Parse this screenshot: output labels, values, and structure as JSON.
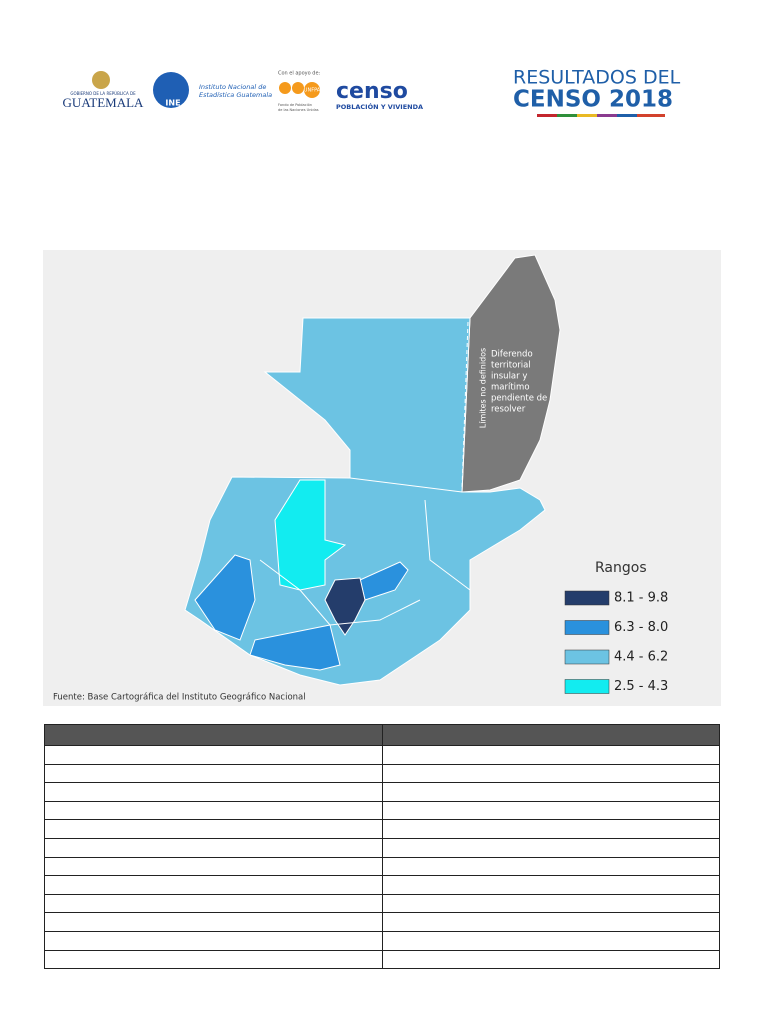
{
  "header": {
    "logos": {
      "guatemala": {
        "line1": "GOBIERNO DE LA REPÚBLICA DE",
        "line2": "GUATEMALA"
      },
      "ine": {
        "abbr": "INE",
        "name_line1": "Instituto Nacional de",
        "name_line2": "Estadística Guatemala"
      },
      "unfpa": {
        "support": "Con el apoyo de:",
        "abbr": "UNFPA",
        "name_line1": "Fondo de Población",
        "name_line2": "de las Naciones Unidas"
      },
      "censo": {
        "word": "censo",
        "subtitle": "POBLACIÓN Y VIVIENDA"
      }
    },
    "title": {
      "line1": "RESULTADOS DEL",
      "line2": "CENSO 2018"
    }
  },
  "map": {
    "boundary_note": "Límites no definidos",
    "dispute_note": [
      "Diferendo",
      "territorial",
      "insular y",
      "marítimo",
      "pendiente de",
      "resolver"
    ],
    "legend": {
      "title": "Rangos",
      "items": [
        {
          "label": "8.1 - 9.8",
          "color": "#243d6b"
        },
        {
          "label": "6.3 - 8.0",
          "color": "#2a91dd"
        },
        {
          "label": "4.4 - 6.2",
          "color": "#6cc3e3"
        },
        {
          "label": "2.5 - 4.3",
          "color": "#12ecf0"
        }
      ]
    },
    "source": "Fuente: Base Cartográfica del Instituto Geográfico Nacional"
  }
}
